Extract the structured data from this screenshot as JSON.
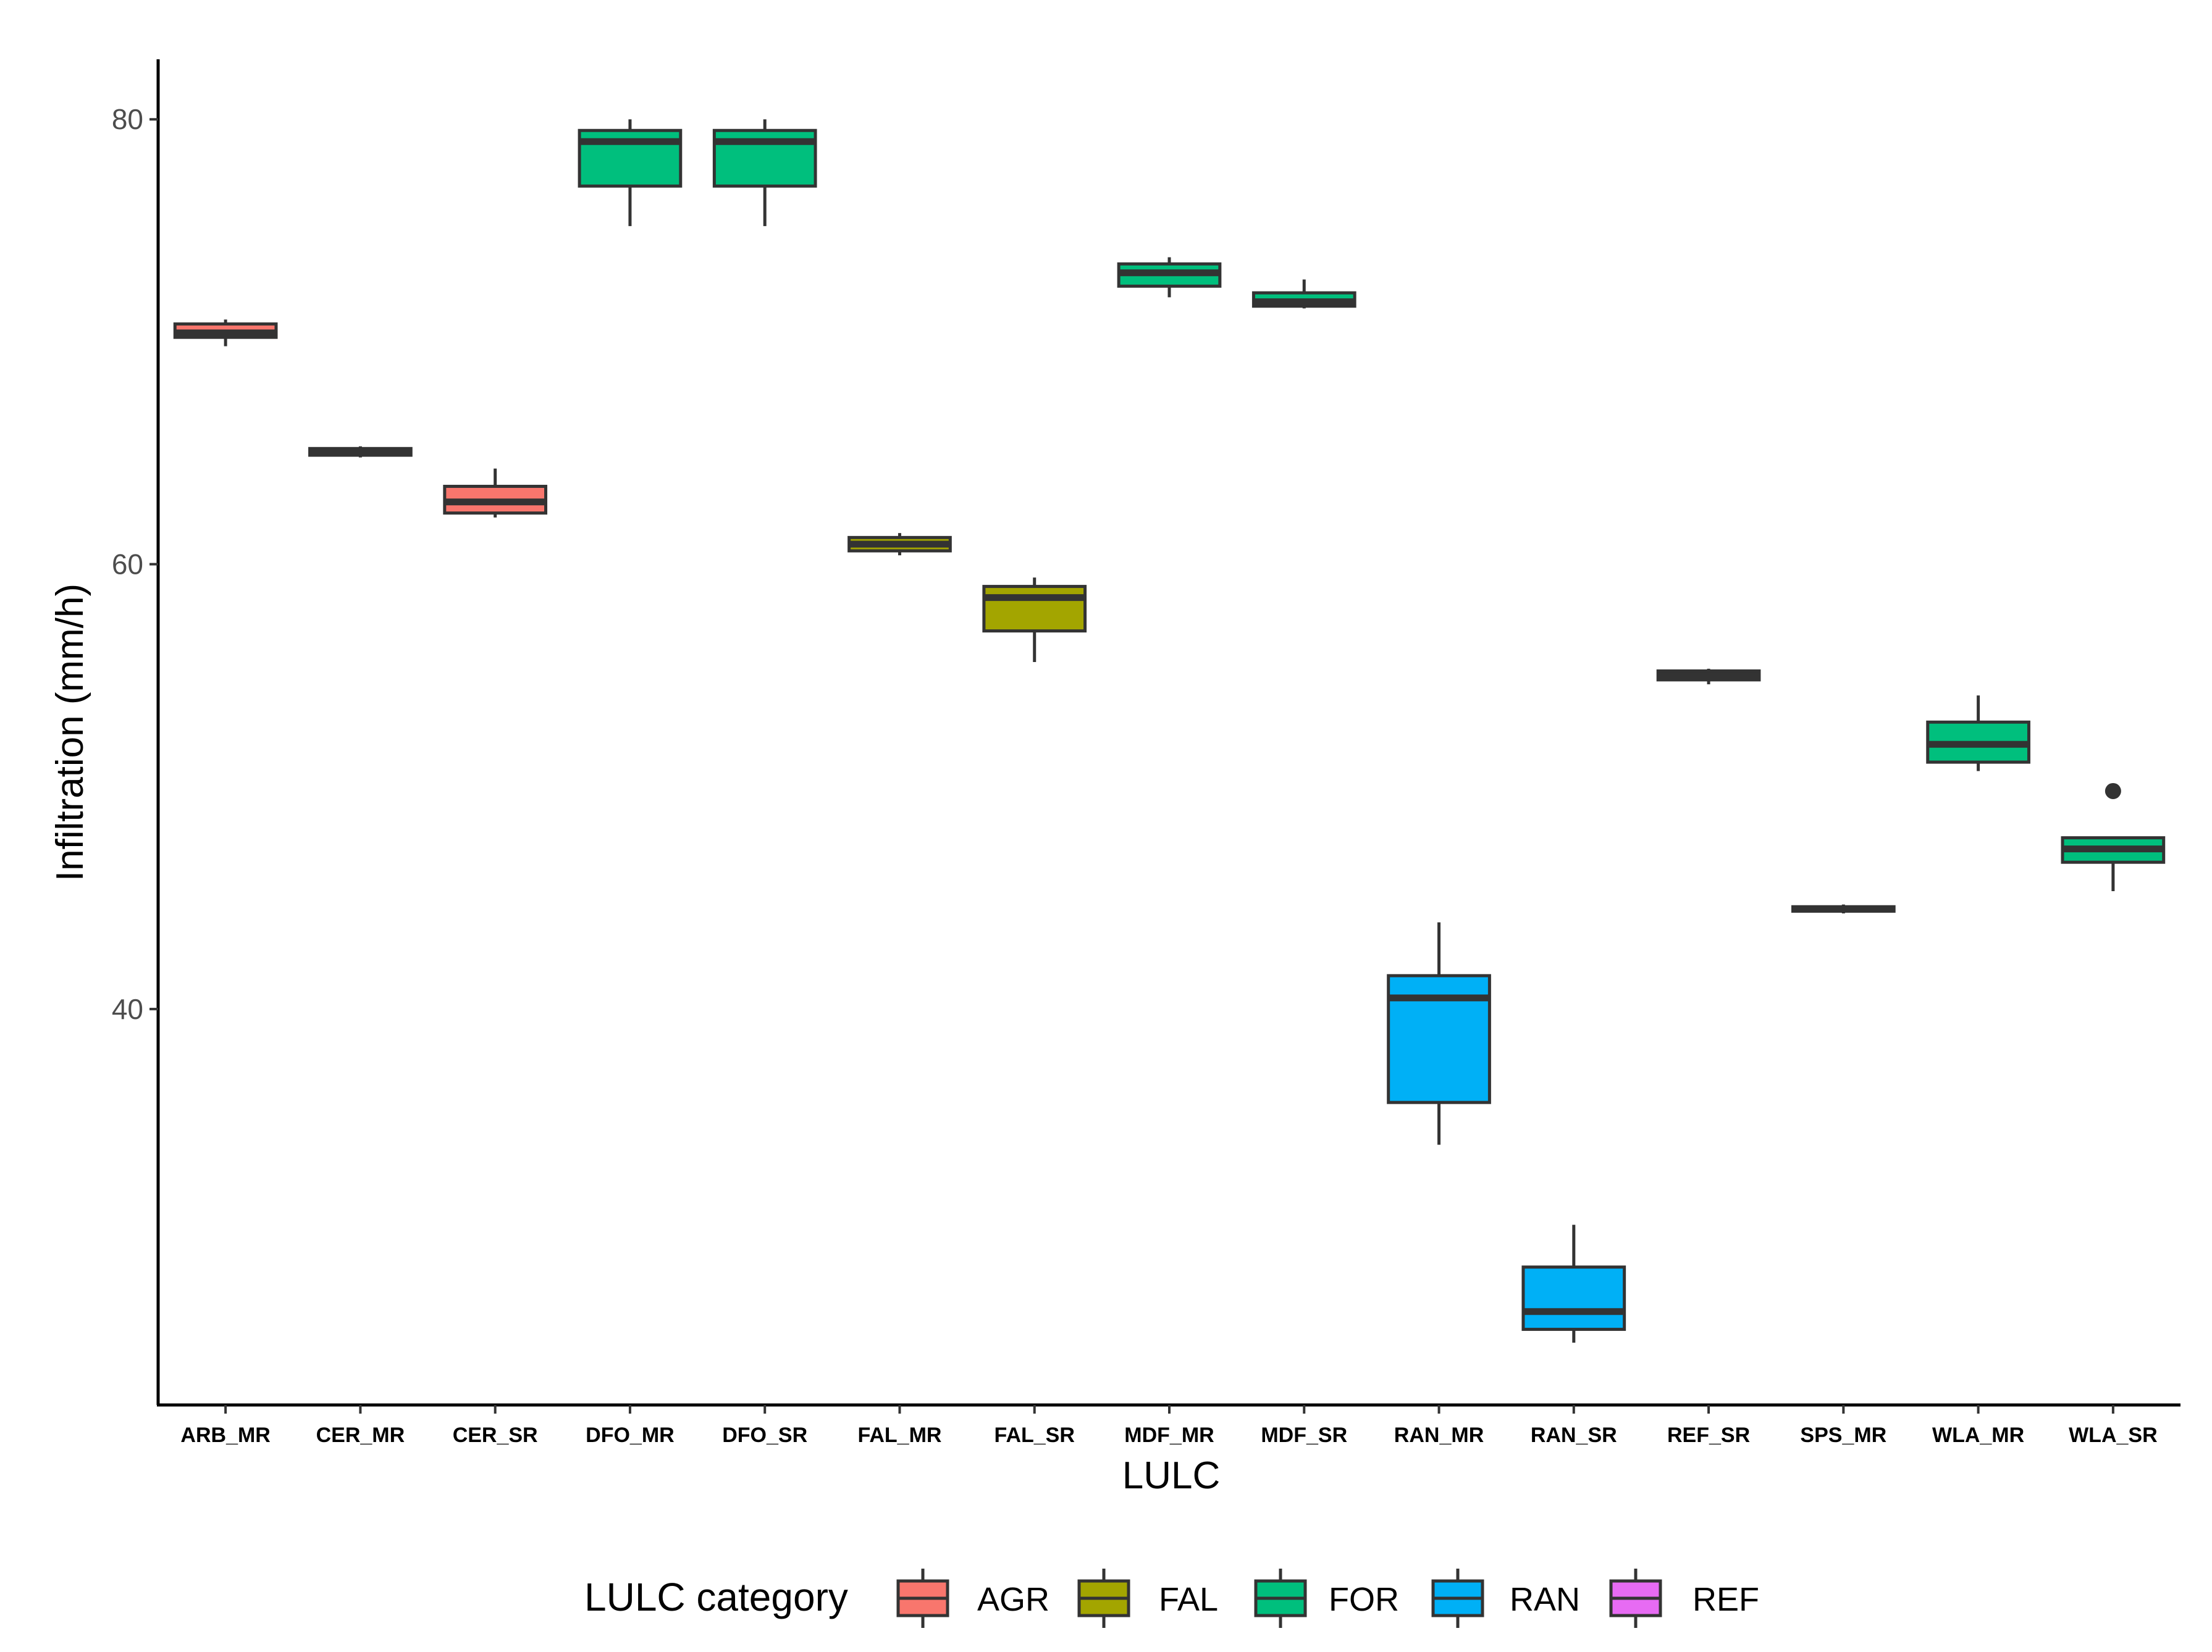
{
  "chart_data": {
    "type": "boxplot",
    "xlabel": "LULC",
    "ylabel": "Infiltration (mm/h)",
    "ylim": [
      22.2,
      82.7
    ],
    "yticks": [
      40,
      60,
      80
    ],
    "grid": false,
    "legend": {
      "title": "LULC category",
      "placement": "bottom",
      "entries": [
        {
          "name": "AGR",
          "color": "#F8766D"
        },
        {
          "name": "FAL",
          "color": "#A3A500"
        },
        {
          "name": "FOR",
          "color": "#00BF7D"
        },
        {
          "name": "RAN",
          "color": "#00B0F6"
        },
        {
          "name": "REF",
          "color": "#E76BF3"
        }
      ]
    },
    "categories": [
      "ARB_MR",
      "CER_MR",
      "CER_SR",
      "DFO_MR",
      "DFO_SR",
      "FAL_MR",
      "FAL_SR",
      "MDF_MR",
      "MDF_SR",
      "RAN_MR",
      "RAN_SR",
      "REF_SR",
      "SPS_MR",
      "WLA_MR",
      "WLA_SR"
    ],
    "boxes": [
      {
        "category": "ARB_MR",
        "group": "AGR",
        "min": 69.8,
        "q1": 70.2,
        "median": 70.4,
        "q3": 70.8,
        "max": 71.0,
        "outliers": []
      },
      {
        "category": "CER_MR",
        "group": "AGR",
        "min": 64.8,
        "q1": 64.9,
        "median": 65.0,
        "q3": 65.2,
        "max": 65.3,
        "outliers": []
      },
      {
        "category": "CER_SR",
        "group": "AGR",
        "min": 62.1,
        "q1": 62.3,
        "median": 62.8,
        "q3": 63.5,
        "max": 64.3,
        "outliers": []
      },
      {
        "category": "DFO_MR",
        "group": "FOR",
        "min": 75.2,
        "q1": 77.0,
        "median": 79.0,
        "q3": 79.5,
        "max": 80.0,
        "outliers": []
      },
      {
        "category": "DFO_SR",
        "group": "FOR",
        "min": 75.2,
        "q1": 77.0,
        "median": 79.0,
        "q3": 79.5,
        "max": 80.0,
        "outliers": []
      },
      {
        "category": "FAL_MR",
        "group": "FAL",
        "min": 60.4,
        "q1": 60.6,
        "median": 60.9,
        "q3": 61.2,
        "max": 61.4,
        "outliers": []
      },
      {
        "category": "FAL_SR",
        "group": "FAL",
        "min": 55.6,
        "q1": 57.0,
        "median": 58.5,
        "q3": 59.0,
        "max": 59.4,
        "outliers": []
      },
      {
        "category": "MDF_MR",
        "group": "FOR",
        "min": 72.0,
        "q1": 72.5,
        "median": 73.1,
        "q3": 73.5,
        "max": 73.8,
        "outliers": []
      },
      {
        "category": "MDF_SR",
        "group": "FOR",
        "min": 71.5,
        "q1": 71.6,
        "median": 71.8,
        "q3": 72.2,
        "max": 72.8,
        "outliers": []
      },
      {
        "category": "RAN_MR",
        "group": "RAN",
        "min": 33.9,
        "q1": 35.8,
        "median": 40.5,
        "q3": 41.5,
        "max": 43.9,
        "outliers": []
      },
      {
        "category": "RAN_SR",
        "group": "RAN",
        "min": 25.0,
        "q1": 25.6,
        "median": 26.4,
        "q3": 28.4,
        "max": 30.3,
        "outliers": []
      },
      {
        "category": "REF_SR",
        "group": "REF",
        "min": 54.6,
        "q1": 54.8,
        "median": 55.0,
        "q3": 55.2,
        "max": 55.3,
        "outliers": []
      },
      {
        "category": "SPS_MR",
        "group": "FOR",
        "min": 44.3,
        "q1": 44.4,
        "median": 44.5,
        "q3": 44.6,
        "max": 44.7,
        "outliers": []
      },
      {
        "category": "WLA_MR",
        "group": "FOR",
        "min": 50.7,
        "q1": 51.1,
        "median": 51.9,
        "q3": 52.9,
        "max": 54.1,
        "outliers": []
      },
      {
        "category": "WLA_SR",
        "group": "FOR",
        "min": 45.3,
        "q1": 46.6,
        "median": 47.2,
        "q3": 47.7,
        "max": 47.7,
        "outliers": [
          49.8
        ]
      }
    ]
  }
}
